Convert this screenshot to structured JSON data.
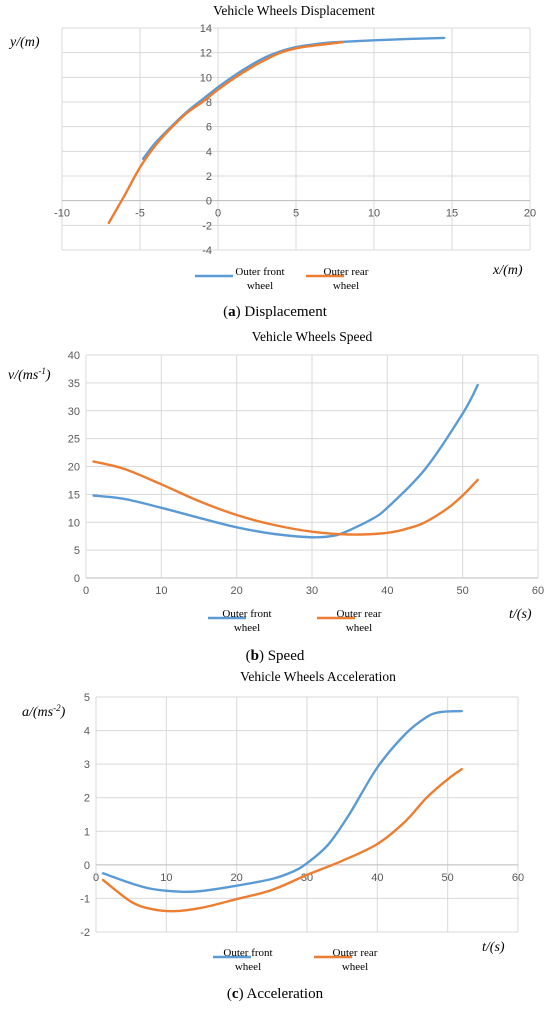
{
  "chart_data": [
    {
      "type": "line",
      "title": "Vehicle Wheels Displacement",
      "ylabel": "y/(m)",
      "xlabel": "x/(m)",
      "caption_letter": "(a)",
      "caption_text": " Displacement",
      "xlim": [
        -10,
        20
      ],
      "ylim": [
        -4,
        14
      ],
      "xticks": [
        -10,
        -5,
        0,
        5,
        10,
        15,
        20
      ],
      "yticks": [
        -4,
        -2,
        0,
        2,
        4,
        6,
        8,
        10,
        12,
        14
      ],
      "grid": true,
      "legend_position": "bottom",
      "series": [
        {
          "name_line1": "Outer front",
          "name_line2": "wheel",
          "color": "#5b9bd5",
          "points": [
            [
              -4.8,
              3.4
            ],
            [
              -4,
              4.7
            ],
            [
              -3,
              6.0
            ],
            [
              -2,
              7.2
            ],
            [
              -1,
              8.2
            ],
            [
              0,
              9.2
            ],
            [
              1,
              10.1
            ],
            [
              2,
              10.9
            ],
            [
              3,
              11.6
            ],
            [
              4,
              12.1
            ],
            [
              5,
              12.45
            ],
            [
              6,
              12.65
            ],
            [
              7,
              12.8
            ],
            [
              8,
              12.88
            ],
            [
              10,
              13.0
            ],
            [
              12,
              13.1
            ],
            [
              14.5,
              13.2
            ]
          ]
        },
        {
          "name_line1": "Outer rear",
          "name_line2": "wheel",
          "color": "#ed7d31",
          "points": [
            [
              -7,
              -1.8
            ],
            [
              -6,
              0.4
            ],
            [
              -5,
              2.7
            ],
            [
              -4,
              4.5
            ],
            [
              -3,
              5.9
            ],
            [
              -2,
              7.1
            ],
            [
              -1,
              8.0
            ],
            [
              0,
              9.0
            ],
            [
              1,
              9.9
            ],
            [
              2,
              10.7
            ],
            [
              3,
              11.4
            ],
            [
              4,
              12.0
            ],
            [
              5,
              12.35
            ],
            [
              6,
              12.55
            ],
            [
              7,
              12.7
            ],
            [
              8,
              12.85
            ]
          ]
        }
      ]
    },
    {
      "type": "line",
      "title": "Vehicle Wheels Speed",
      "ylabel": "v/(ms-1)",
      "xlabel": "t/(s)",
      "caption_letter": "(b)",
      "caption_text": " Speed",
      "xlim": [
        0,
        60
      ],
      "ylim": [
        0,
        40
      ],
      "xticks": [
        0,
        10,
        20,
        30,
        40,
        50,
        60
      ],
      "yticks": [
        0,
        5,
        10,
        15,
        20,
        25,
        30,
        35,
        40
      ],
      "grid": true,
      "legend_position": "bottom",
      "series": [
        {
          "name_line1": "Outer front",
          "name_line2": "wheel",
          "color": "#5b9bd5",
          "points": [
            [
              1,
              14.8
            ],
            [
              5,
              14.2
            ],
            [
              10,
              12.6
            ],
            [
              15,
              10.8
            ],
            [
              20,
              9.1
            ],
            [
              25,
              7.9
            ],
            [
              30,
              7.3
            ],
            [
              33,
              7.6
            ],
            [
              35,
              8.6
            ],
            [
              38,
              10.6
            ],
            [
              40,
              12.6
            ],
            [
              45,
              19.5
            ],
            [
              50,
              29.5
            ],
            [
              52,
              34.6
            ]
          ]
        },
        {
          "name_line1": "Outer rear",
          "name_line2": "wheel",
          "color": "#ed7d31",
          "points": [
            [
              1,
              20.9
            ],
            [
              5,
              19.6
            ],
            [
              10,
              16.8
            ],
            [
              15,
              13.8
            ],
            [
              20,
              11.3
            ],
            [
              25,
              9.5
            ],
            [
              30,
              8.3
            ],
            [
              35,
              7.8
            ],
            [
              40,
              8.1
            ],
            [
              43,
              9.0
            ],
            [
              45,
              10.0
            ],
            [
              48,
              12.5
            ],
            [
              50,
              14.8
            ],
            [
              52,
              17.6
            ]
          ]
        }
      ]
    },
    {
      "type": "line",
      "title": "Vehicle Wheels Acceleration",
      "ylabel": "a/(ms-2)",
      "xlabel": "t/(s)",
      "caption_letter": "(c)",
      "caption_text": " Acceleration",
      "xlim": [
        0,
        60
      ],
      "ylim": [
        -2,
        5
      ],
      "xticks": [
        0,
        10,
        20,
        30,
        40,
        50,
        60
      ],
      "yticks": [
        -2,
        -1,
        0,
        1,
        2,
        3,
        4,
        5
      ],
      "grid": true,
      "legend_position": "bottom",
      "series": [
        {
          "name_line1": "Outer front",
          "name_line2": "wheel",
          "color": "#5b9bd5",
          "points": [
            [
              1,
              -0.25
            ],
            [
              5,
              -0.55
            ],
            [
              8,
              -0.72
            ],
            [
              12,
              -0.8
            ],
            [
              15,
              -0.78
            ],
            [
              20,
              -0.62
            ],
            [
              25,
              -0.42
            ],
            [
              28,
              -0.2
            ],
            [
              30,
              0.05
            ],
            [
              33,
              0.6
            ],
            [
              36,
              1.5
            ],
            [
              40,
              2.9
            ],
            [
              44,
              3.9
            ],
            [
              47,
              4.4
            ],
            [
              49,
              4.55
            ],
            [
              52,
              4.58
            ]
          ]
        },
        {
          "name_line1": "Outer rear",
          "name_line2": "wheel",
          "color": "#ed7d31",
          "points": [
            [
              1,
              -0.45
            ],
            [
              5,
              -1.1
            ],
            [
              8,
              -1.32
            ],
            [
              11,
              -1.38
            ],
            [
              15,
              -1.28
            ],
            [
              20,
              -1.02
            ],
            [
              25,
              -0.75
            ],
            [
              30,
              -0.3
            ],
            [
              35,
              0.12
            ],
            [
              40,
              0.62
            ],
            [
              44,
              1.3
            ],
            [
              47,
              2.0
            ],
            [
              50,
              2.55
            ],
            [
              52,
              2.85
            ]
          ]
        }
      ]
    }
  ]
}
